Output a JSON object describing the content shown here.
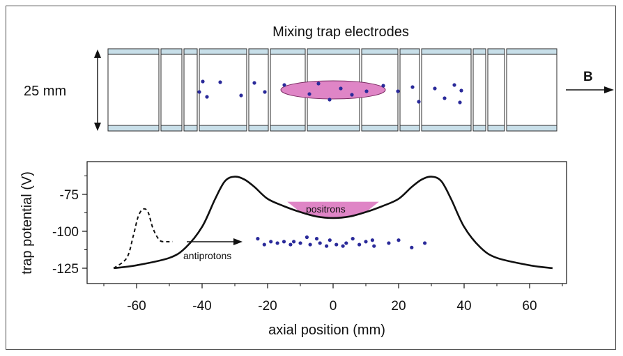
{
  "figure": {
    "top_title": "Mixing trap electrodes",
    "dimension_label": "25 mm",
    "field_label": "B",
    "positrons_label": "positrons",
    "antiprotons_label": "antiprotons",
    "colors": {
      "electrode_fill": "#c8dfe9",
      "electrode_stroke": "#2a2a2a",
      "plasma_fill": "#df85c6",
      "plasma_stroke": "#7a2a62",
      "particle": "#2a2a9a",
      "curve": "#111111"
    }
  },
  "chart_data": {
    "type": "line",
    "xlabel": "axial position  (mm)",
    "ylabel": "trap potential  (V)",
    "xlim": [
      -70,
      70
    ],
    "ylim": [
      -137,
      -58
    ],
    "x_ticks": [
      -60,
      -40,
      -20,
      0,
      20,
      40,
      60
    ],
    "y_ticks": [
      -75,
      -100,
      -125
    ],
    "series": [
      {
        "style": "solid",
        "x": [
          -67,
          -60,
          -50,
          -45,
          -40,
          -36,
          -33,
          -30,
          -27,
          -24,
          -20,
          -15,
          -10,
          -5,
          0,
          5,
          10,
          15,
          20,
          24,
          27,
          30,
          33,
          36,
          40,
          45,
          50,
          60,
          67
        ],
        "y": [
          -125,
          -123,
          -118,
          -111,
          -97,
          -78,
          -66,
          -63,
          -65,
          -70,
          -78,
          -83,
          -87,
          -90,
          -91,
          -90,
          -87,
          -83,
          -78,
          -70,
          -65,
          -63,
          -66,
          -78,
          -97,
          -111,
          -118,
          -123,
          -125
        ]
      },
      {
        "style": "dashed",
        "x": [
          -67,
          -63,
          -61,
          -59.5,
          -58,
          -56.5,
          -55,
          -53,
          -51,
          -49
        ],
        "y": [
          -125,
          -118,
          -103,
          -90,
          -85,
          -87,
          -98,
          -106,
          -107,
          -107
        ]
      }
    ],
    "positrons_fill": {
      "x_range": [
        -14,
        14
      ],
      "top": -80
    },
    "antiprotons": {
      "x": [
        -23,
        -21,
        -19,
        -17,
        -15,
        -13,
        -12,
        -10,
        -8,
        -7,
        -5,
        -4,
        -2,
        -1,
        1,
        3,
        4,
        6,
        8,
        10,
        12,
        12.5,
        17,
        20,
        24,
        28
      ],
      "y": [
        -105,
        -109,
        -107,
        -108,
        -107,
        -109,
        -107,
        -108,
        -104,
        -109,
        -105,
        -108,
        -110,
        -106,
        -109,
        -110,
        -108,
        -105,
        -109,
        -107,
        -106,
        -110,
        -108,
        -106,
        -111,
        -108
      ]
    }
  }
}
